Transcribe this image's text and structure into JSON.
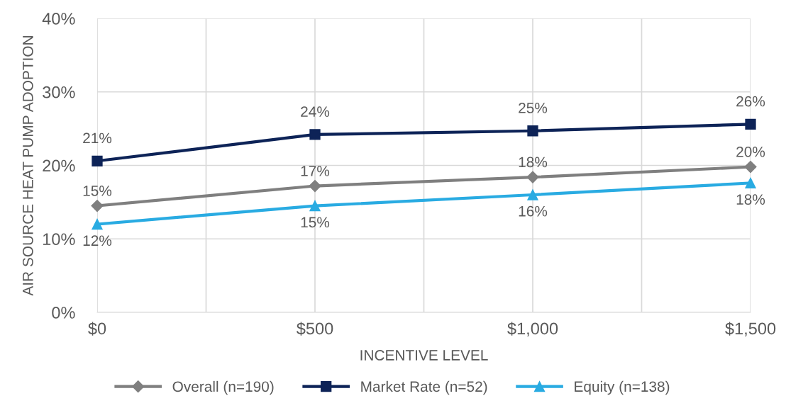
{
  "chart_data": {
    "type": "line",
    "xlabel": "INCENTIVE LEVEL",
    "ylabel": "AIR SOURCE HEAT PUMP ADOPTION",
    "x": [
      0,
      500,
      1000,
      1500
    ],
    "xlim": [
      0,
      1500
    ],
    "xticks": [
      {
        "value": 0,
        "label": "$0"
      },
      {
        "value": 250,
        "label": null
      },
      {
        "value": 500,
        "label": "$500"
      },
      {
        "value": 750,
        "label": null
      },
      {
        "value": 1000,
        "label": "$1,000"
      },
      {
        "value": 1250,
        "label": null
      },
      {
        "value": 1500,
        "label": "$1,500"
      }
    ],
    "ylim": [
      0,
      40
    ],
    "yticks": [
      {
        "value": 0,
        "label": "0%"
      },
      {
        "value": 10,
        "label": "10%"
      },
      {
        "value": 20,
        "label": "20%"
      },
      {
        "value": 30,
        "label": "30%"
      },
      {
        "value": 40,
        "label": "40%"
      }
    ],
    "grid": true,
    "legend": "bottom",
    "line_style": "solid",
    "series": [
      {
        "name": "Overall (n=190)",
        "color": "#7f7f7f",
        "marker": "diamond",
        "values": [
          14.5,
          17.2,
          18.4,
          19.8
        ],
        "value_labels": [
          "15%",
          "17%",
          "18%",
          "20%"
        ]
      },
      {
        "name": "Market Rate (n=52)",
        "color": "#0d2357",
        "marker": "square",
        "values": [
          20.6,
          24.2,
          24.7,
          25.6
        ],
        "value_labels": [
          "21%",
          "24%",
          "25%",
          "26%"
        ]
      },
      {
        "name": "Equity (n=138)",
        "color": "#29abe2",
        "marker": "triangle",
        "values": [
          12.0,
          14.5,
          16.0,
          17.6
        ],
        "value_labels": [
          "12%",
          "15%",
          "16%",
          "18%"
        ]
      }
    ]
  }
}
